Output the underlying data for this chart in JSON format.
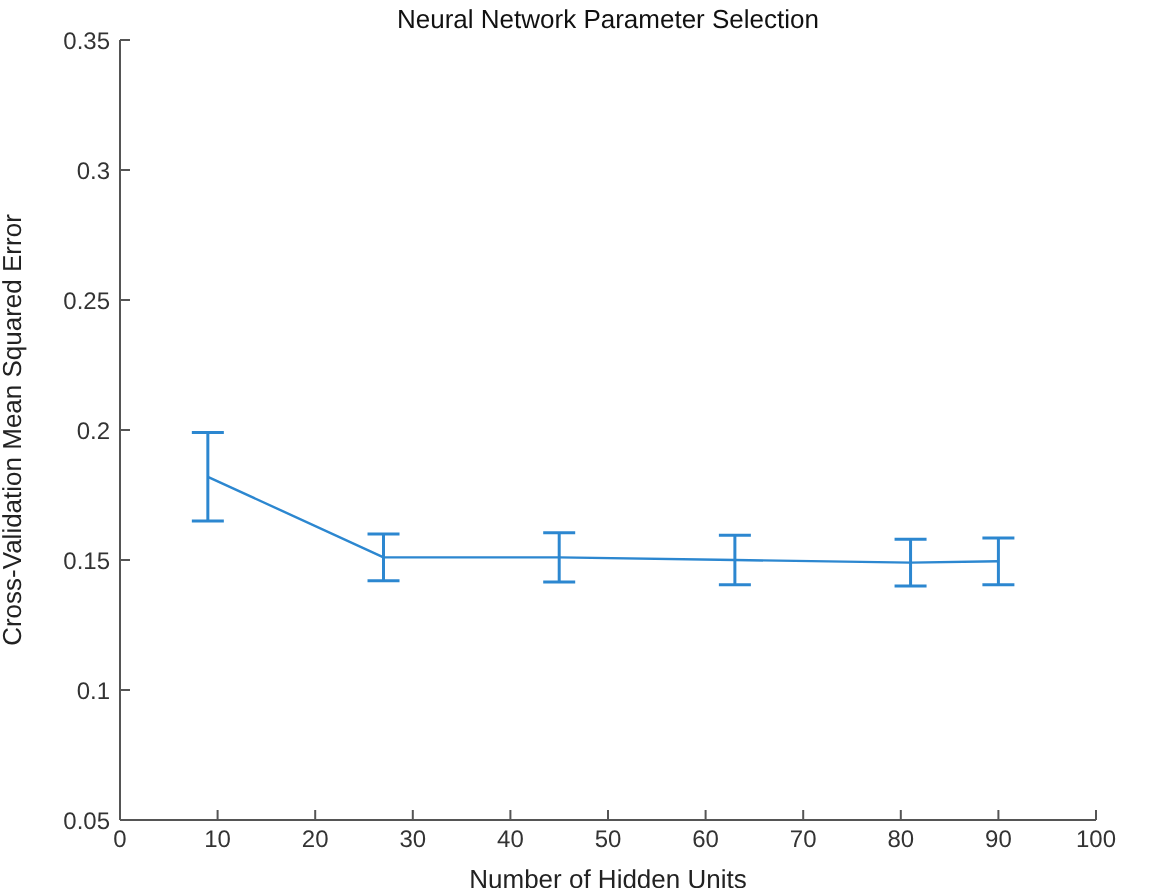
{
  "chart_data": {
    "type": "line",
    "title": "Neural Network Parameter Selection",
    "xlabel": "Number of Hidden Units",
    "ylabel": "Cross-Validation Mean Squared Error",
    "x": [
      9,
      27,
      45,
      63,
      81,
      90
    ],
    "series": [
      {
        "color": "#2c87d0",
        "values": [
          0.182,
          0.151,
          0.151,
          0.15,
          0.149,
          0.1495
        ],
        "errors": [
          0.017,
          0.009,
          0.0095,
          0.0095,
          0.009,
          0.009
        ]
      }
    ],
    "xlim": [
      0,
      100
    ],
    "xticks": [
      0,
      10,
      20,
      30,
      40,
      50,
      60,
      70,
      80,
      90,
      100
    ],
    "ylim": [
      0.05,
      0.35
    ],
    "yticks": [
      0.05,
      0.1,
      0.15,
      0.2,
      0.25,
      0.3,
      0.35
    ],
    "grid": false,
    "legend": false,
    "marker": "none"
  }
}
